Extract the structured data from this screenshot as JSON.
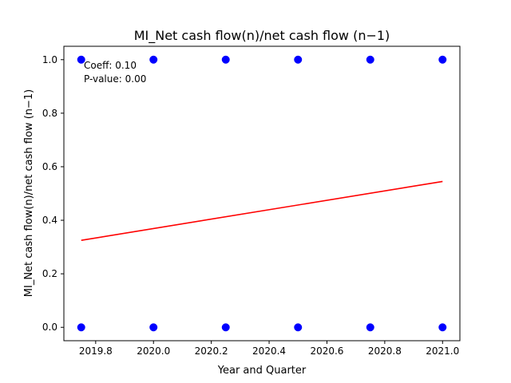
{
  "chart_data": {
    "type": "scatter",
    "title": "MI_Net cash flow(n)/net cash flow (n−1)",
    "xlabel": "Year and Quarter",
    "ylabel": "MI_Net cash flow(n)/net cash flow (n−1)",
    "xlim": [
      2019.69,
      2021.06
    ],
    "ylim": [
      -0.05,
      1.05
    ],
    "xticks": [
      2019.8,
      2020.0,
      2020.2,
      2020.4,
      2020.6,
      2020.8,
      2021.0
    ],
    "xtick_labels": [
      "2019.8",
      "2020.0",
      "2020.2",
      "2020.4",
      "2020.6",
      "2020.8",
      "2021.0"
    ],
    "yticks": [
      0.0,
      0.2,
      0.4,
      0.6,
      0.8,
      1.0
    ],
    "ytick_labels": [
      "0.0",
      "0.2",
      "0.4",
      "0.6",
      "0.8",
      "1.0"
    ],
    "grid": false,
    "series": [
      {
        "kind": "scatter",
        "color": "#0000ff",
        "x": [
          2019.75,
          2019.75,
          2020.0,
          2020.0,
          2020.25,
          2020.25,
          2020.5,
          2020.5,
          2020.75,
          2020.75,
          2021.0,
          2021.0
        ],
        "y": [
          1,
          0,
          1,
          0,
          1,
          0,
          1,
          0,
          1,
          0,
          1,
          0
        ]
      },
      {
        "kind": "line",
        "color": "#ff0000",
        "x": [
          2019.75,
          2021.0
        ],
        "y": [
          0.325,
          0.545
        ]
      }
    ],
    "annotations": [
      "Coeff: 0.10",
      "P-value: 0.00"
    ]
  }
}
